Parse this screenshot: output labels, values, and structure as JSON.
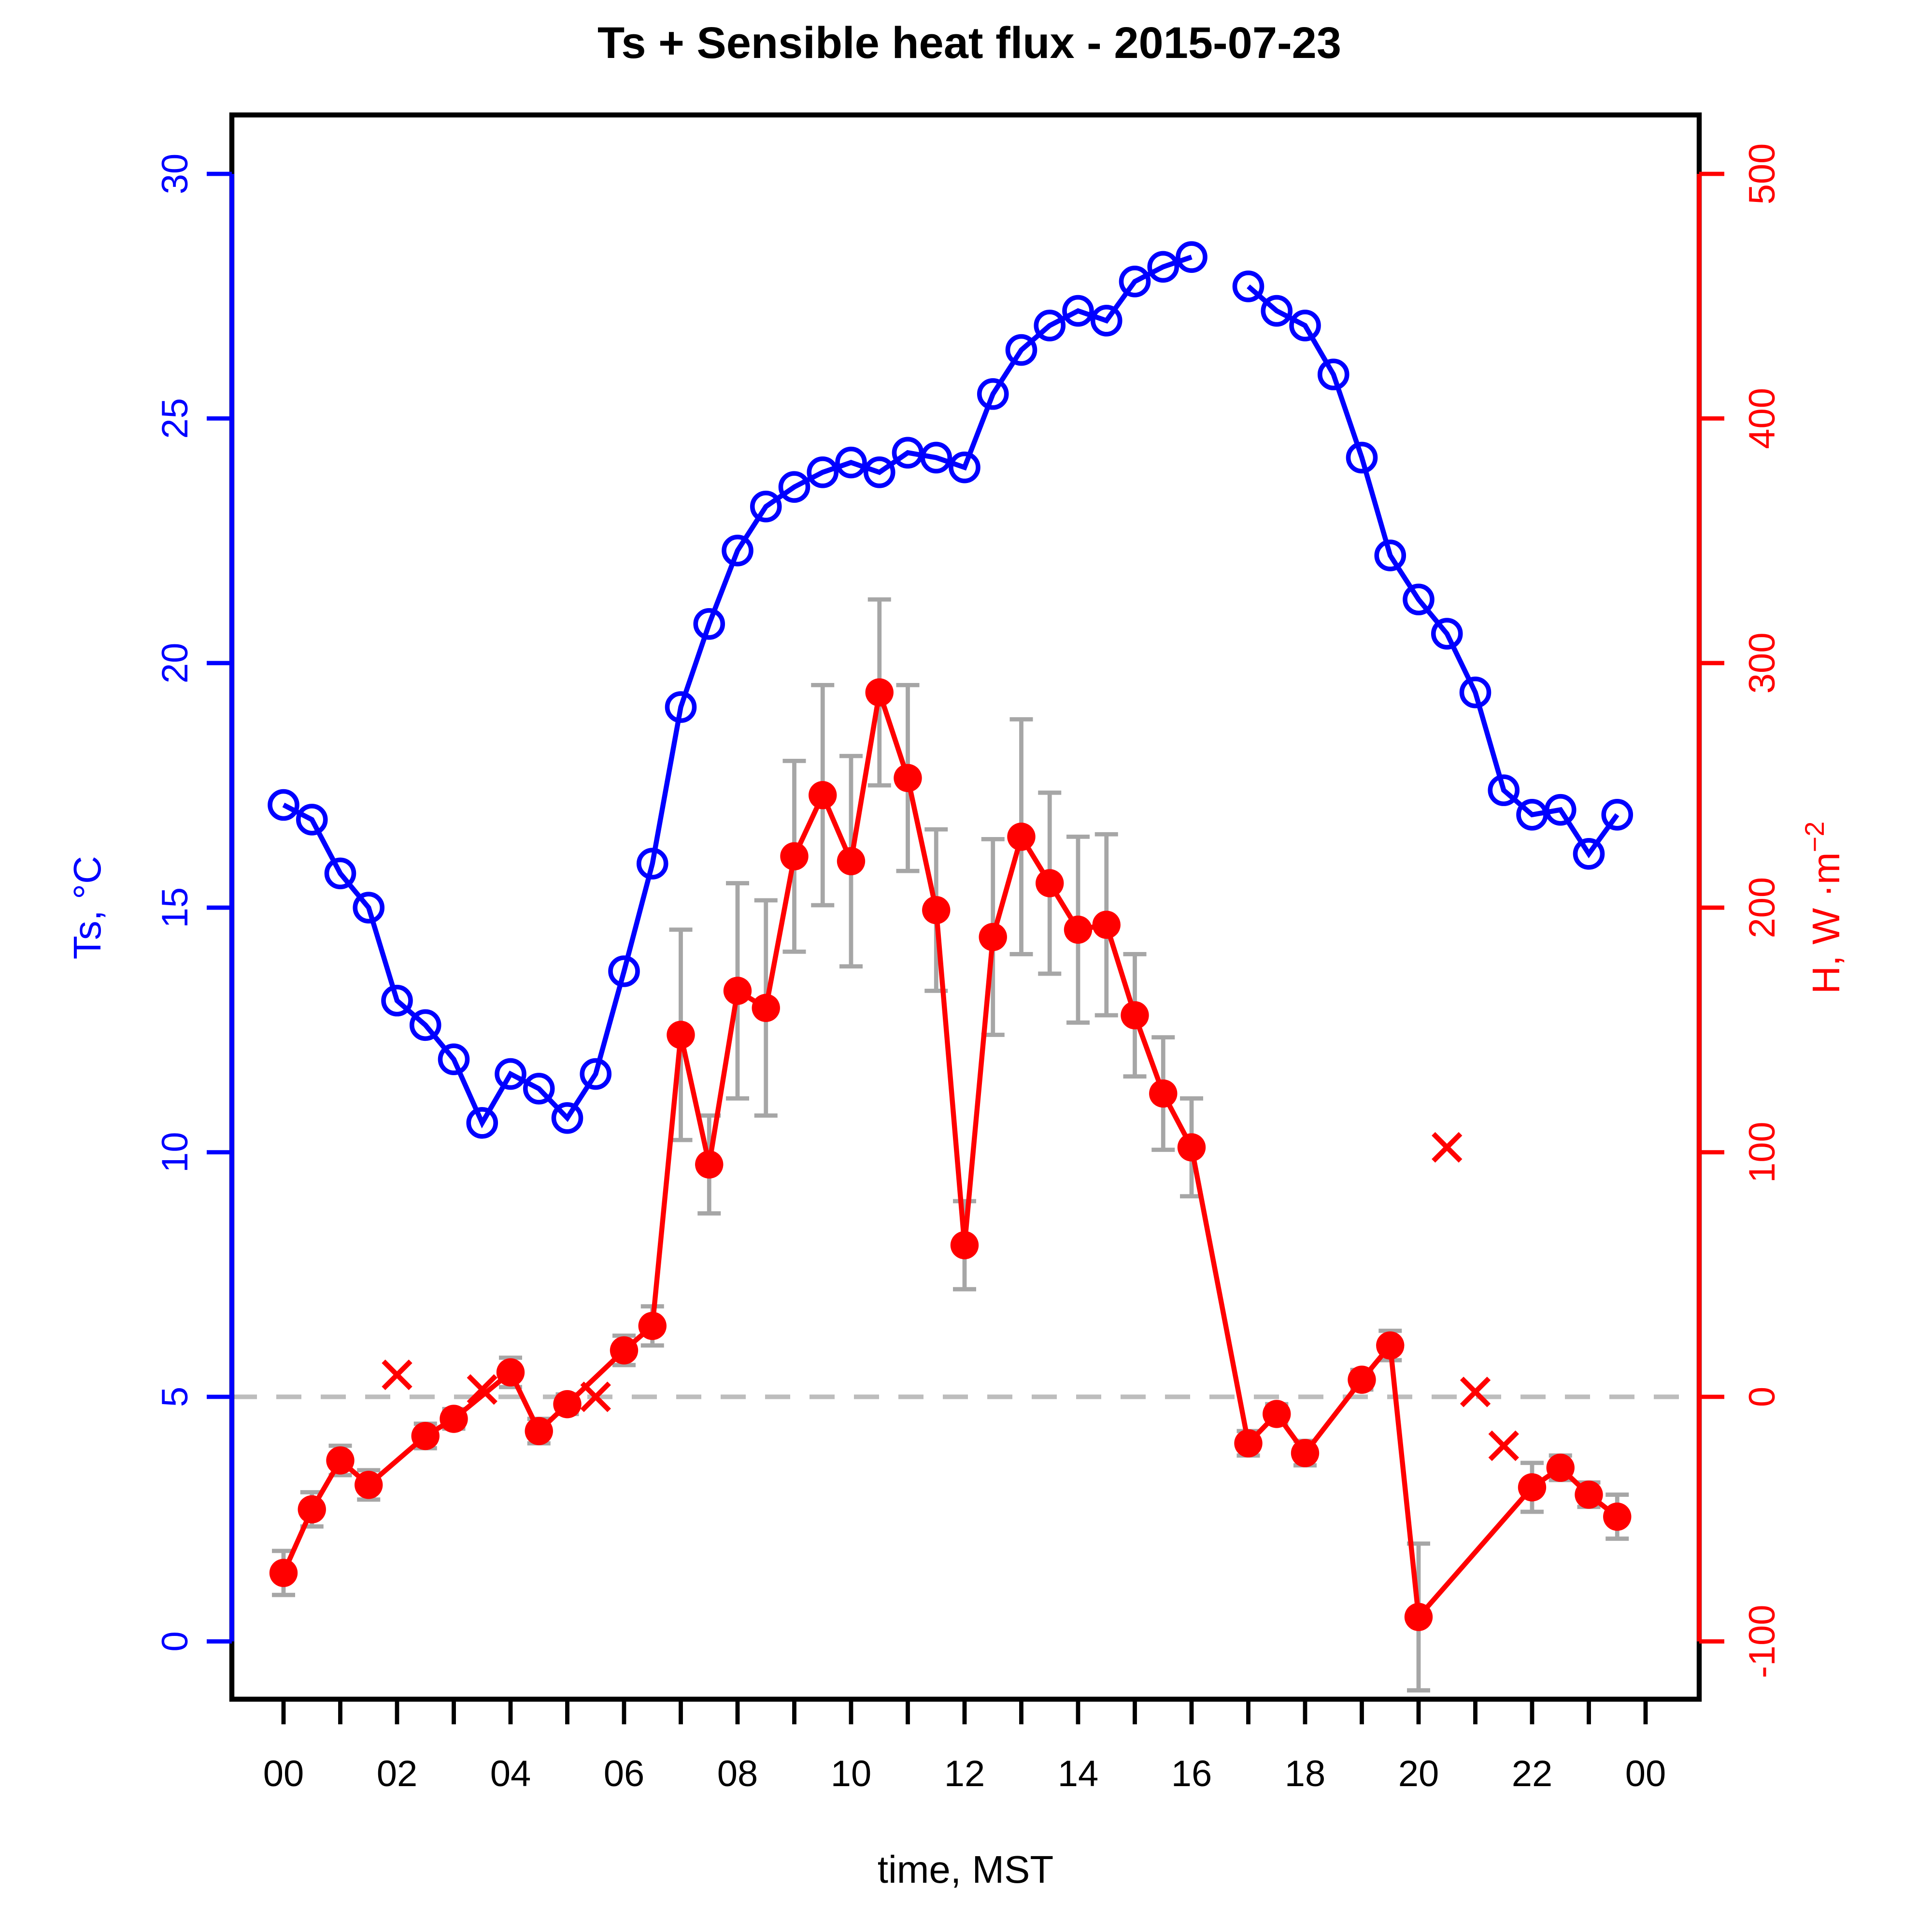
{
  "title": "Ts + Sensible heat flux -  2015-07-23",
  "chart_data": {
    "type": "line",
    "title": "Ts + Sensible heat flux -  2015-07-23",
    "xlabel": "time, MST",
    "ylabel_left": "Ts, °C",
    "ylabel_right_prefix": "H, W",
    "ylabel_right_mid": "·m",
    "ylabel_right_exp": "−2",
    "legend_position": "none",
    "grid": false,
    "x_range_hours": [
      0,
      24
    ],
    "x_major_tick_labels": [
      "00",
      "02",
      "04",
      "06",
      "08",
      "10",
      "12",
      "14",
      "16",
      "18",
      "20",
      "22",
      "00"
    ],
    "x_minor_tick_every_hours": 1,
    "left_axis": {
      "ticks": [
        0,
        5,
        10,
        15,
        20,
        25,
        30
      ],
      "labels": [
        "0",
        "5",
        "10",
        "15",
        "20",
        "25",
        "30"
      ],
      "range_shown": [
        -1.2,
        31.2
      ],
      "color": "#0000ff"
    },
    "right_axis": {
      "ticks": [
        -100,
        0,
        100,
        200,
        300,
        400,
        500
      ],
      "labels": [
        "-100",
        "0",
        "100",
        "200",
        "300",
        "400",
        "500"
      ],
      "range_shown": [
        -124,
        524
      ],
      "color": "#ff0000"
    },
    "zero_reference_line": {
      "H": 0,
      "style": "dashed",
      "color": "#bdbdbd"
    },
    "error_bar_color": "#a6a6a6",
    "series": [
      {
        "name": "Ts",
        "marker": "open-circle",
        "color": "#0000ff",
        "x": [
          0,
          0.5,
          1,
          1.5,
          2,
          2.5,
          3,
          3.5,
          4,
          4.5,
          5,
          5.5,
          6,
          6.5,
          7,
          7.5,
          8,
          8.5,
          9,
          9.5,
          10,
          10.5,
          11,
          11.5,
          12,
          12.5,
          13,
          13.5,
          14,
          14.5,
          15,
          15.5,
          16,
          16.5,
          17,
          17.5,
          18,
          18.5,
          19,
          19.5,
          20,
          20.5,
          21,
          21.5,
          22,
          22.5,
          23,
          23.5
        ],
        "y": [
          17.1,
          16.8,
          15.7,
          15.0,
          13.1,
          12.6,
          11.9,
          10.6,
          11.6,
          11.3,
          10.7,
          11.6,
          13.7,
          15.9,
          19.1,
          20.8,
          22.3,
          23.2,
          23.6,
          23.9,
          24.1,
          23.9,
          24.3,
          24.2,
          24.0,
          25.5,
          26.4,
          26.9,
          27.2,
          27.0,
          27.8,
          28.1,
          28.3,
          null,
          27.7,
          27.2,
          26.9,
          25.9,
          24.2,
          22.2,
          21.3,
          20.6,
          19.4,
          17.4,
          16.9,
          17.0,
          16.1,
          16.9
        ]
      },
      {
        "name": "H",
        "marker": "filled-circle",
        "color": "#ff0000",
        "x": [
          0,
          0.5,
          1,
          1.5,
          2.5,
          3,
          4,
          4.5,
          5,
          6,
          6.5,
          7,
          7.5,
          8,
          8.5,
          9,
          9.5,
          10,
          10.5,
          11,
          11.5,
          12,
          12.5,
          13,
          13.5,
          14,
          14.5,
          15,
          15.5,
          16,
          17,
          17.5,
          18,
          19,
          19.5,
          20,
          22,
          22.5,
          23,
          23.5
        ],
        "y": [
          -72,
          -46,
          -26,
          -36,
          -16,
          -9,
          10,
          -14,
          -3,
          19,
          29,
          148,
          95,
          166,
          159,
          221,
          246,
          219,
          288,
          253,
          199,
          62,
          188,
          229,
          210,
          191,
          193,
          156,
          124,
          102,
          -19,
          -7,
          -23,
          7,
          21,
          -90,
          -37,
          -29,
          -40,
          -49
        ],
        "yerr": [
          9,
          7,
          6,
          6,
          5,
          4,
          6,
          5,
          4,
          6,
          8,
          43,
          20,
          44,
          44,
          39,
          45,
          43,
          38,
          38,
          33,
          18,
          40,
          48,
          37,
          38,
          37,
          25,
          23,
          20,
          5,
          4,
          5,
          4,
          6,
          30,
          10,
          5,
          5,
          9
        ]
      },
      {
        "name": "H flagged",
        "marker": "x",
        "color": "#ff0000",
        "x": [
          2,
          3.5,
          5.5,
          20.5,
          21,
          21.5
        ],
        "y": [
          9,
          3,
          0,
          102,
          2,
          -20
        ]
      }
    ]
  }
}
